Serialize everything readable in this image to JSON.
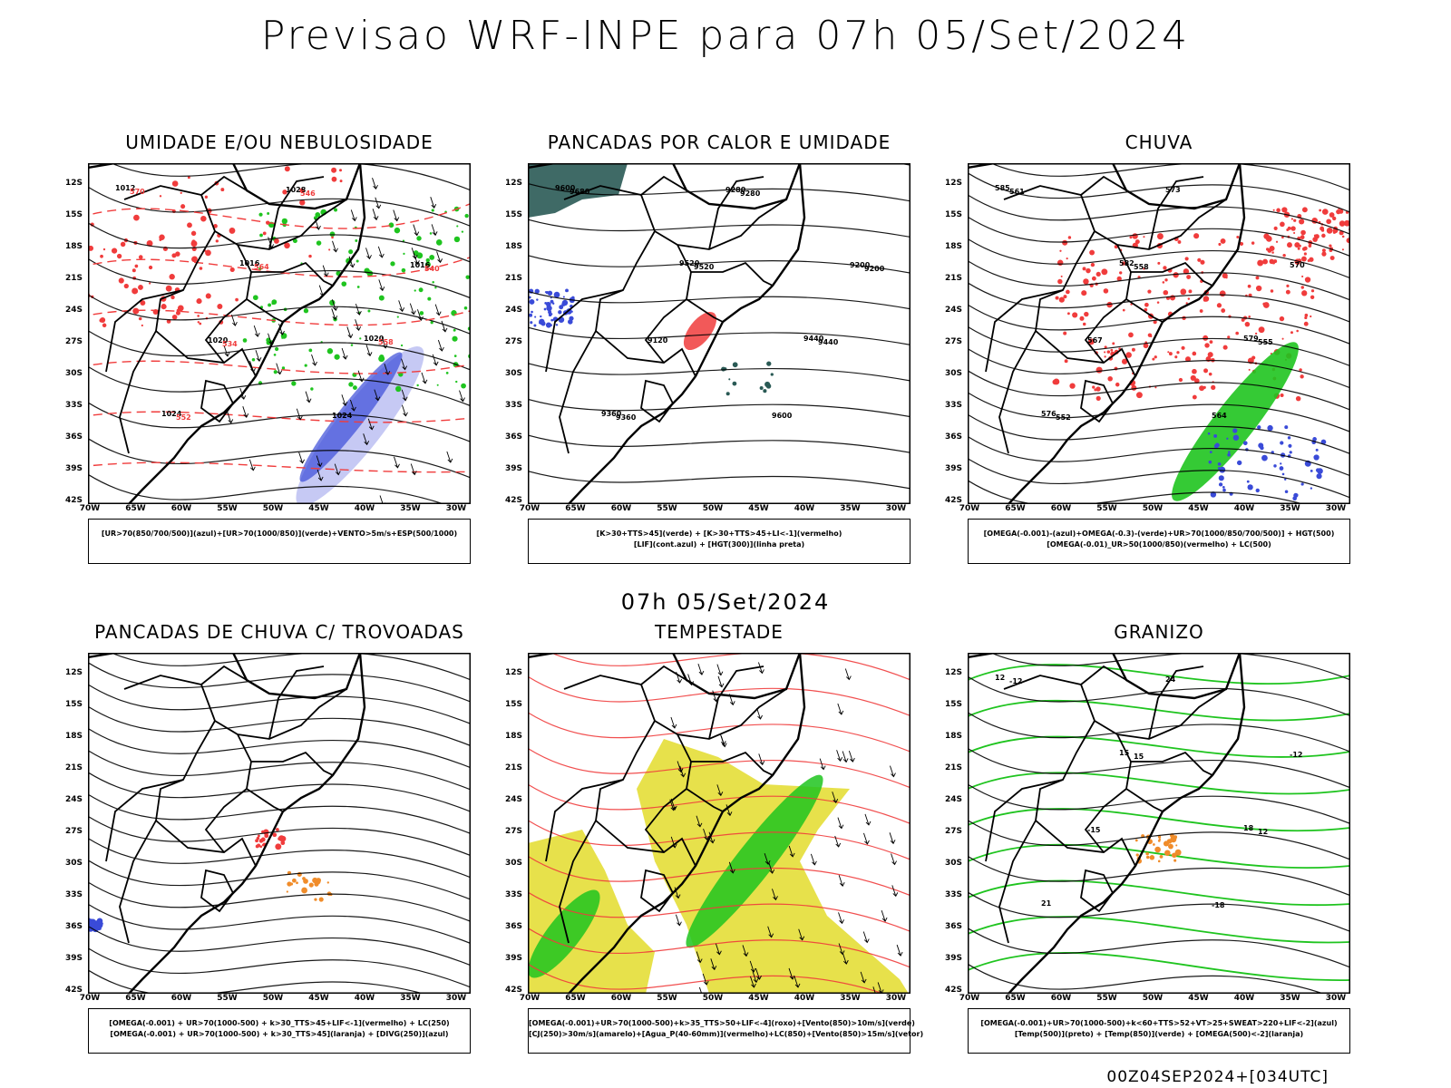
{
  "header": {
    "title": "Previsao WRF-INPE  para 07h 05/Set/2024",
    "mid_time": "07h 05/Set/2024",
    "run_info": "00Z04SEP2024+[034UTC]"
  },
  "axes": {
    "lat_labels": [
      "12S",
      "15S",
      "18S",
      "21S",
      "24S",
      "27S",
      "30S",
      "33S",
      "36S",
      "39S",
      "42S"
    ],
    "lon_labels": [
      "70W",
      "65W",
      "60W",
      "55W",
      "50W",
      "45W",
      "40W",
      "35W",
      "30W"
    ]
  },
  "panels": [
    {
      "title": "UMIDADE E/OU NEBULOSIDADE",
      "legend": [
        "[UR>70(850/700/500)](azul)+[UR>70(1000/850)](verde)+VENTO>5m/s+ESP(500/1000)"
      ],
      "contour_labels": [
        "1012",
        "1016",
        "1020",
        "1024",
        "1028",
        "1016",
        "1020",
        "1024",
        "570",
        "564",
        "558",
        "552",
        "546",
        "540",
        "534"
      ]
    },
    {
      "title": "PANCADAS POR CALOR E UMIDADE",
      "legend": [
        "[K>30+TTS>45](verde) + [K>30+TTS>45+LI<-1](vermelho)",
        "[LIF](cont.azul) + [HGT(300)](linha preta)"
      ],
      "contour_labels": [
        "9600",
        "9520",
        "9440",
        "9360",
        "9280",
        "9200",
        "9120",
        "9600",
        "9680",
        "9520",
        "9440",
        "9360",
        "9280",
        "9200"
      ]
    },
    {
      "title": "CHUVA",
      "legend": [
        "[OMEGA(-0.001)-(azul)+OMEGA(-0.3)-(verde)+UR>70(1000/850/700/500)] + HGT(500)",
        "[OMEGA(-0.01)_UR>50(1000/850)(vermelho) + LC(500)"
      ],
      "contour_labels": [
        "585",
        "582",
        "579",
        "576",
        "573",
        "570",
        "567",
        "564",
        "561",
        "558",
        "555",
        "552"
      ]
    },
    {
      "title": "PANCADAS DE CHUVA C/ TROVOADAS",
      "legend": [
        "[OMEGA(-0.001) + UR>70(1000-500) + k>30_TTS>45+LIF<-1](vermelho) + LC(250)",
        "[OMEGA(-0.001) + UR>70(1000-500) + k>30_TTS>45](laranja) + [DIVG(250)](azul)"
      ],
      "contour_labels": []
    },
    {
      "title": "TEMPESTADE",
      "legend": [
        "[OMEGA(-0.001)+UR>70(1000-500)+k>35_TTS>50+LIF<-4](roxo)+[Vento(850)>10m/s](verde)",
        "[CJ(250)>30m/s](amarelo)+[Agua_P(40-60mm)](vermelho)+LC(850)+[Vento(850)>15m/s](vetor)"
      ],
      "contour_labels": []
    },
    {
      "title": "GRANIZO",
      "legend": [
        "[OMEGA(-0.001)+UR>70(1000-500)+k<60+TTS>52+VT>25+SWEAT>220+LIF<-2](azul)",
        "[Temp(500)](preto) + [Temp(850)](verde) + [OMEGA(500)<-2](laranja)"
      ],
      "contour_labels": [
        "12",
        "15",
        "18",
        "21",
        "24",
        "-12",
        "-15",
        "-18",
        "-12",
        "15",
        "12"
      ]
    }
  ],
  "colors": {
    "blue": "#3a4bd8",
    "light_blue": "#aeb2f0",
    "green": "#1fc41f",
    "red": "#f03c3c",
    "yellow": "#e3dc2c",
    "orange": "#f08c2a",
    "dark_teal": "#2a5a55"
  }
}
